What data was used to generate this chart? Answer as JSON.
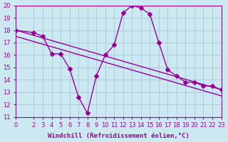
{
  "xlabel": "Windchill (Refroidissement éolien,°C)",
  "xlim": [
    0,
    23
  ],
  "ylim": [
    11,
    20
  ],
  "yticks": [
    11,
    12,
    13,
    14,
    15,
    16,
    17,
    18,
    19,
    20
  ],
  "xticks": [
    0,
    2,
    3,
    4,
    5,
    6,
    7,
    8,
    9,
    10,
    11,
    12,
    13,
    14,
    15,
    16,
    17,
    18,
    19,
    20,
    21,
    22,
    23
  ],
  "background_color": "#cce8f0",
  "grid_color": "#aaccdd",
  "line_color": "#990099",
  "curve_x": [
    0,
    2,
    3,
    4,
    5,
    6,
    7,
    8,
    9,
    10,
    11,
    12,
    13,
    14,
    15,
    16,
    17,
    18,
    19,
    20,
    21,
    22,
    23
  ],
  "curve_y": [
    18.0,
    17.8,
    17.5,
    16.1,
    16.1,
    14.9,
    12.6,
    11.3,
    14.3,
    16.0,
    16.8,
    19.4,
    20.0,
    19.8,
    19.3,
    17.0,
    14.8,
    14.3,
    13.8,
    13.8,
    13.5,
    13.5,
    13.2
  ],
  "line1_x": [
    0,
    23
  ],
  "line1_y": [
    18.0,
    13.2
  ],
  "line2_x": [
    0,
    23
  ],
  "line2_y": [
    17.5,
    12.7
  ],
  "marker_size": 3,
  "linewidth": 1.0,
  "tick_fontsize": 6,
  "label_fontsize": 6.5
}
